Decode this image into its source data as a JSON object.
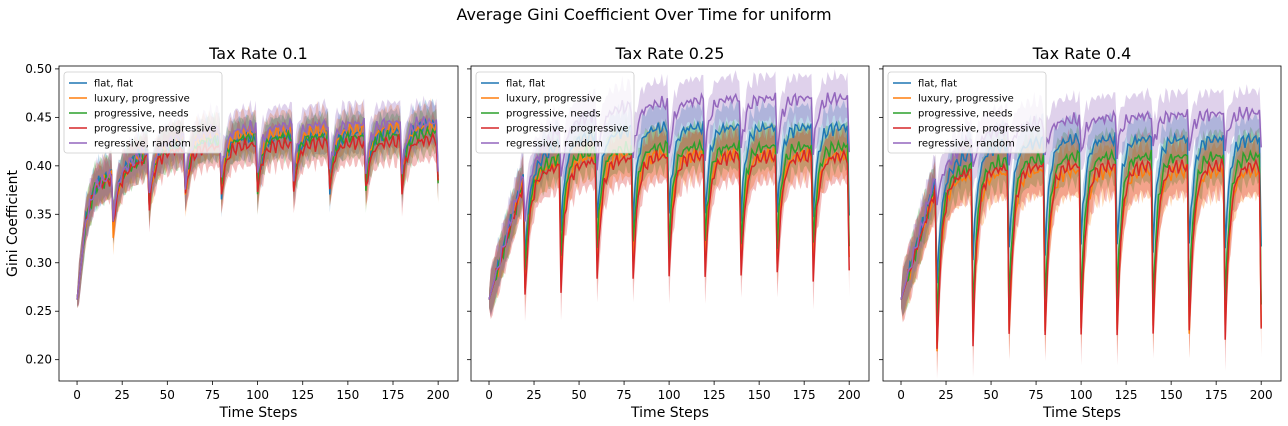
{
  "figure": {
    "title": "Average Gini Coefficient Over Time for uniform"
  },
  "colors": {
    "flat, flat": "#1f77b4",
    "luxury, progressive": "#ff7f0e",
    "progressive, needs": "#2ca02c",
    "progressive, progressive": "#d62728",
    "regressive, random": "#9467bd"
  },
  "chart_data": [
    {
      "type": "line",
      "title": "Tax Rate 0.1",
      "xlabel": "Time Steps",
      "ylabel": "Gini Coefficient",
      "xlim": [
        -10,
        211
      ],
      "ylim": [
        0.178,
        0.503
      ],
      "xticks": [
        0,
        25,
        50,
        75,
        100,
        125,
        150,
        175,
        200
      ],
      "yticks": [
        0.2,
        0.25,
        0.3,
        0.35,
        0.4,
        0.45,
        0.5
      ],
      "grid": false,
      "legend": "top-left",
      "shaded_band": "mean ± spread",
      "series": [
        {
          "name": "flat, flat",
          "start": 0.262,
          "level": 0.437,
          "drop": 0.055,
          "band": 0.02,
          "points": [
            [
              0,
              0.262
            ],
            [
              5,
              0.345
            ],
            [
              10,
              0.378
            ],
            [
              20,
              0.395
            ],
            [
              40,
              0.415
            ],
            [
              60,
              0.425
            ],
            [
              80,
              0.428
            ],
            [
              100,
              0.43
            ],
            [
              120,
              0.432
            ],
            [
              140,
              0.433
            ],
            [
              160,
              0.435
            ],
            [
              180,
              0.437
            ],
            [
              200,
              0.445
            ]
          ]
        },
        {
          "name": "luxury, progressive",
          "start": 0.262,
          "level": 0.44,
          "drop": 0.06,
          "band": 0.02,
          "points": [
            [
              0,
              0.262
            ],
            [
              5,
              0.345
            ],
            [
              10,
              0.378
            ],
            [
              20,
              0.392
            ],
            [
              40,
              0.415
            ],
            [
              60,
              0.428
            ],
            [
              80,
              0.432
            ],
            [
              100,
              0.435
            ],
            [
              120,
              0.436
            ],
            [
              140,
              0.437
            ],
            [
              160,
              0.438
            ],
            [
              180,
              0.44
            ],
            [
              200,
              0.44
            ]
          ]
        },
        {
          "name": "progressive, needs",
          "start": 0.262,
          "level": 0.43,
          "drop": 0.05,
          "band": 0.02,
          "points": [
            [
              0,
              0.262
            ],
            [
              5,
              0.345
            ],
            [
              10,
              0.378
            ],
            [
              20,
              0.39
            ],
            [
              40,
              0.413
            ],
            [
              60,
              0.424
            ],
            [
              80,
              0.427
            ],
            [
              100,
              0.429
            ],
            [
              120,
              0.43
            ],
            [
              140,
              0.43
            ],
            [
              160,
              0.43
            ],
            [
              180,
              0.432
            ],
            [
              200,
              0.435
            ]
          ]
        },
        {
          "name": "progressive, progressive",
          "start": 0.262,
          "level": 0.425,
          "drop": 0.05,
          "band": 0.02,
          "points": [
            [
              0,
              0.262
            ],
            [
              5,
              0.345
            ],
            [
              10,
              0.378
            ],
            [
              20,
              0.388
            ],
            [
              40,
              0.41
            ],
            [
              60,
              0.418
            ],
            [
              80,
              0.42
            ],
            [
              100,
              0.422
            ],
            [
              120,
              0.423
            ],
            [
              140,
              0.424
            ],
            [
              160,
              0.424
            ],
            [
              180,
              0.425
            ],
            [
              200,
              0.428
            ]
          ]
        },
        {
          "name": "regressive, random",
          "start": 0.262,
          "level": 0.445,
          "drop": 0.05,
          "band": 0.02,
          "points": [
            [
              0,
              0.262
            ],
            [
              5,
              0.345
            ],
            [
              10,
              0.378
            ],
            [
              20,
              0.393
            ],
            [
              40,
              0.418
            ],
            [
              60,
              0.43
            ],
            [
              80,
              0.437
            ],
            [
              100,
              0.44
            ],
            [
              120,
              0.442
            ],
            [
              140,
              0.443
            ],
            [
              160,
              0.444
            ],
            [
              180,
              0.445
            ],
            [
              200,
              0.445
            ]
          ]
        }
      ]
    },
    {
      "type": "line",
      "title": "Tax Rate 0.25",
      "xlabel": "Time Steps",
      "ylabel": "",
      "xlim": [
        -10,
        211
      ],
      "ylim": [
        0.178,
        0.503
      ],
      "xticks": [
        0,
        25,
        50,
        75,
        100,
        125,
        150,
        175,
        200
      ],
      "yticks": [
        0.2,
        0.25,
        0.3,
        0.35,
        0.4,
        0.45,
        0.5
      ],
      "grid": false,
      "legend": "top-left",
      "series": [
        {
          "name": "flat, flat",
          "start": 0.262,
          "level": 0.44,
          "drop": 0.09,
          "band": 0.022,
          "points": [
            [
              0,
              0.262
            ],
            [
              20,
              0.395
            ],
            [
              40,
              0.425
            ],
            [
              60,
              0.432
            ],
            [
              80,
              0.437
            ],
            [
              100,
              0.44
            ],
            [
              120,
              0.44
            ],
            [
              140,
              0.44
            ],
            [
              160,
              0.44
            ],
            [
              180,
              0.44
            ],
            [
              200,
              0.44
            ]
          ]
        },
        {
          "name": "luxury, progressive",
          "start": 0.262,
          "level": 0.412,
          "drop": 0.11,
          "band": 0.022,
          "points": [
            [
              0,
              0.262
            ],
            [
              20,
              0.39
            ],
            [
              40,
              0.405
            ],
            [
              60,
              0.41
            ],
            [
              80,
              0.412
            ],
            [
              100,
              0.412
            ],
            [
              120,
              0.412
            ],
            [
              140,
              0.412
            ],
            [
              160,
              0.412
            ],
            [
              180,
              0.412
            ],
            [
              200,
              0.412
            ]
          ]
        },
        {
          "name": "progressive, needs",
          "start": 0.262,
          "level": 0.42,
          "drop": 0.1,
          "band": 0.022,
          "points": [
            [
              0,
              0.262
            ],
            [
              20,
              0.39
            ],
            [
              40,
              0.41
            ],
            [
              60,
              0.416
            ],
            [
              80,
              0.418
            ],
            [
              100,
              0.42
            ],
            [
              120,
              0.42
            ],
            [
              140,
              0.42
            ],
            [
              160,
              0.42
            ],
            [
              180,
              0.42
            ],
            [
              200,
              0.42
            ]
          ]
        },
        {
          "name": "progressive, progressive",
          "start": 0.262,
          "level": 0.41,
          "drop": 0.125,
          "band": 0.025,
          "points": [
            [
              0,
              0.262
            ],
            [
              20,
              0.388
            ],
            [
              40,
              0.4
            ],
            [
              60,
              0.405
            ],
            [
              80,
              0.408
            ],
            [
              100,
              0.41
            ],
            [
              120,
              0.41
            ],
            [
              140,
              0.41
            ],
            [
              160,
              0.41
            ],
            [
              180,
              0.41
            ],
            [
              200,
              0.41
            ]
          ]
        },
        {
          "name": "regressive, random",
          "start": 0.262,
          "level": 0.47,
          "drop": 0.055,
          "band": 0.022,
          "points": [
            [
              0,
              0.262
            ],
            [
              20,
              0.398
            ],
            [
              40,
              0.44
            ],
            [
              60,
              0.455
            ],
            [
              80,
              0.462
            ],
            [
              100,
              0.465
            ],
            [
              120,
              0.468
            ],
            [
              140,
              0.47
            ],
            [
              160,
              0.47
            ],
            [
              180,
              0.47
            ],
            [
              200,
              0.47
            ]
          ]
        }
      ]
    },
    {
      "type": "line",
      "title": "Tax Rate 0.4",
      "xlabel": "Time Steps",
      "ylabel": "",
      "xlim": [
        -10,
        211
      ],
      "ylim": [
        0.178,
        0.503
      ],
      "xticks": [
        0,
        25,
        50,
        75,
        100,
        125,
        150,
        175,
        200
      ],
      "yticks": [
        0.2,
        0.25,
        0.3,
        0.35,
        0.4,
        0.45,
        0.5
      ],
      "grid": false,
      "legend": "top-left",
      "series": [
        {
          "name": "flat, flat",
          "start": 0.262,
          "level": 0.428,
          "drop": 0.11,
          "band": 0.022,
          "points": [
            [
              0,
              0.262
            ],
            [
              20,
              0.39
            ],
            [
              40,
              0.415
            ],
            [
              60,
              0.422
            ],
            [
              80,
              0.425
            ],
            [
              100,
              0.428
            ],
            [
              120,
              0.428
            ],
            [
              140,
              0.428
            ],
            [
              160,
              0.428
            ],
            [
              180,
              0.428
            ],
            [
              200,
              0.428
            ]
          ]
        },
        {
          "name": "luxury, progressive",
          "start": 0.262,
          "level": 0.395,
          "drop": 0.165,
          "band": 0.025,
          "points": [
            [
              0,
              0.262
            ],
            [
              20,
              0.38
            ],
            [
              40,
              0.39
            ],
            [
              60,
              0.393
            ],
            [
              80,
              0.395
            ],
            [
              100,
              0.395
            ],
            [
              120,
              0.395
            ],
            [
              140,
              0.395
            ],
            [
              160,
              0.395
            ],
            [
              180,
              0.395
            ],
            [
              200,
              0.395
            ]
          ]
        },
        {
          "name": "progressive, needs",
          "start": 0.262,
          "level": 0.41,
          "drop": 0.15,
          "band": 0.025,
          "points": [
            [
              0,
              0.262
            ],
            [
              20,
              0.385
            ],
            [
              40,
              0.4
            ],
            [
              60,
              0.405
            ],
            [
              80,
              0.408
            ],
            [
              100,
              0.41
            ],
            [
              120,
              0.41
            ],
            [
              140,
              0.41
            ],
            [
              160,
              0.41
            ],
            [
              180,
              0.41
            ],
            [
              200,
              0.41
            ]
          ]
        },
        {
          "name": "progressive, progressive",
          "start": 0.262,
          "level": 0.4,
          "drop": 0.175,
          "band": 0.028,
          "points": [
            [
              0,
              0.262
            ],
            [
              20,
              0.382
            ],
            [
              40,
              0.395
            ],
            [
              60,
              0.398
            ],
            [
              80,
              0.4
            ],
            [
              100,
              0.4
            ],
            [
              120,
              0.4
            ],
            [
              140,
              0.4
            ],
            [
              160,
              0.4
            ],
            [
              180,
              0.4
            ],
            [
              200,
              0.4
            ]
          ]
        },
        {
          "name": "regressive, random",
          "start": 0.262,
          "level": 0.455,
          "drop": 0.035,
          "band": 0.022,
          "points": [
            [
              0,
              0.262
            ],
            [
              20,
              0.395
            ],
            [
              40,
              0.43
            ],
            [
              60,
              0.44
            ],
            [
              80,
              0.445
            ],
            [
              100,
              0.448
            ],
            [
              120,
              0.45
            ],
            [
              140,
              0.452
            ],
            [
              160,
              0.453
            ],
            [
              180,
              0.454
            ],
            [
              200,
              0.455
            ]
          ]
        }
      ]
    }
  ]
}
